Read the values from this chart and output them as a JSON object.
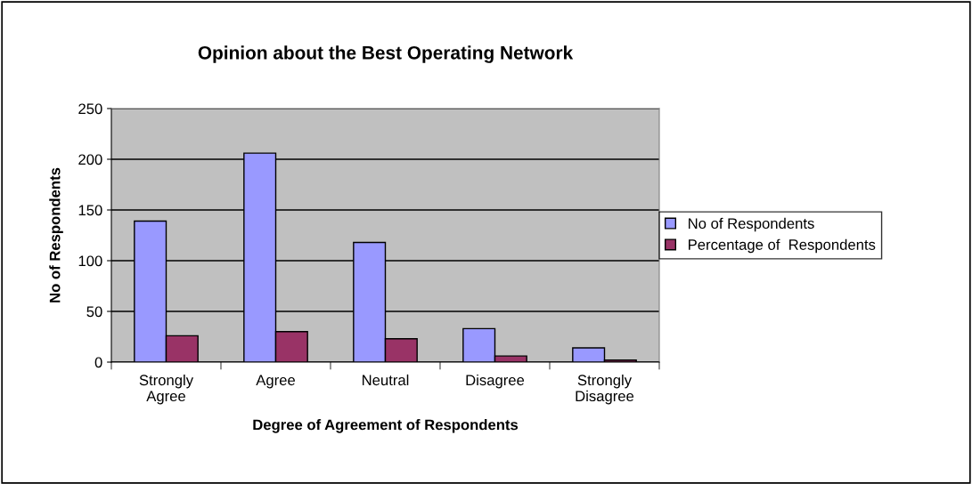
{
  "chart_data": {
    "type": "bar",
    "title": "Opinion about the Best Operating Network",
    "xlabel": "Degree of Agreement of Respondents",
    "ylabel": "No of Respondents",
    "categories": [
      "Strongly\nAgree",
      "Agree",
      "Neutral",
      "Disagree",
      "Strongly\nDisagree"
    ],
    "series": [
      {
        "name": "No of Respondents",
        "color": "#9999ff",
        "values": [
          139,
          206,
          118,
          33,
          14
        ]
      },
      {
        "name": "Percentage of  Respondents",
        "color": "#993366",
        "values": [
          26,
          30,
          23,
          6,
          2
        ]
      }
    ],
    "ylim": [
      0,
      250
    ],
    "yticks": [
      0,
      50,
      100,
      150,
      200,
      250
    ],
    "grid": "y",
    "legend": "right"
  }
}
